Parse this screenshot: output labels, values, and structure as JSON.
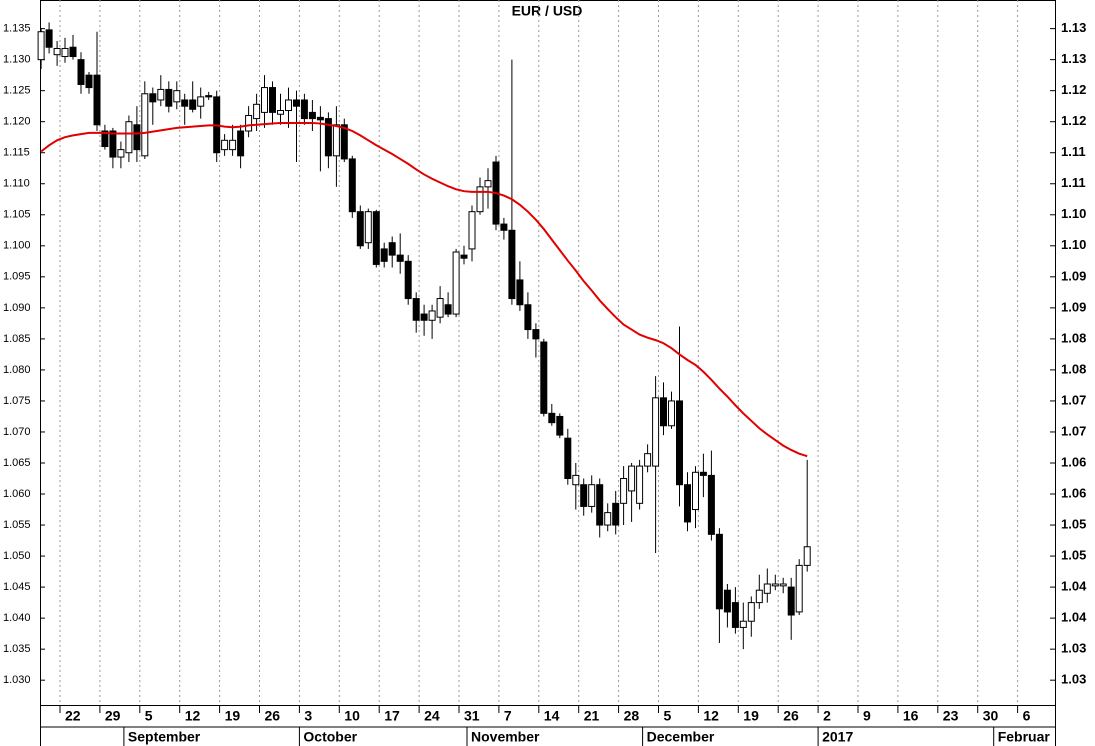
{
  "chart_data": {
    "type": "candlestick",
    "title": "EUR / USD",
    "x": [
      "08-17",
      "08-18",
      "08-19",
      "08-22",
      "08-23",
      "08-24",
      "08-25",
      "08-26",
      "08-29",
      "08-30",
      "08-31",
      "09-01",
      "09-02",
      "09-05",
      "09-06",
      "09-07",
      "09-08",
      "09-09",
      "09-12",
      "09-13",
      "09-14",
      "09-15",
      "09-16",
      "09-19",
      "09-20",
      "09-21",
      "09-22",
      "09-23",
      "09-26",
      "09-27",
      "09-28",
      "09-29",
      "09-30",
      "10-03",
      "10-04",
      "10-05",
      "10-06",
      "10-07",
      "10-10",
      "10-11",
      "10-12",
      "10-13",
      "10-14",
      "10-17",
      "10-18",
      "10-19",
      "10-20",
      "10-21",
      "10-24",
      "10-25",
      "10-26",
      "10-27",
      "10-28",
      "10-31",
      "11-01",
      "11-02",
      "11-03",
      "11-04",
      "11-07",
      "11-08",
      "11-09",
      "11-10",
      "11-11",
      "11-14",
      "11-15",
      "11-16",
      "11-17",
      "11-18",
      "11-21",
      "11-22",
      "11-23",
      "11-24",
      "11-25",
      "11-28",
      "11-29",
      "11-30",
      "12-01",
      "12-02",
      "12-05",
      "12-06",
      "12-07",
      "12-08",
      "12-09",
      "12-12",
      "12-13",
      "12-14",
      "12-15",
      "12-16",
      "12-19",
      "12-20",
      "12-21",
      "12-22",
      "12-23",
      "12-26",
      "12-27",
      "12-28",
      "12-29"
    ],
    "open": [
      1.13,
      1.1348,
      1.1308,
      1.1305,
      1.132,
      1.13,
      1.1275,
      1.1275,
      1.1185,
      1.1185,
      1.1143,
      1.115,
      1.1195,
      1.1145,
      1.1245,
      1.1235,
      1.1252,
      1.1232,
      1.1235,
      1.1235,
      1.1225,
      1.1242,
      1.124,
      1.1155,
      1.1155,
      1.1185,
      1.1185,
      1.1205,
      1.1215,
      1.1255,
      1.1212,
      1.1218,
      1.1235,
      1.1235,
      1.1215,
      1.1207,
      1.1205,
      1.1145,
      1.1195,
      1.114,
      1.1055,
      1.1005,
      1.1055,
      1.0995,
      1.1005,
      1.0985,
      1.0975,
      1.0915,
      1.089,
      1.088,
      1.0885,
      1.0905,
      1.089,
      1.0985,
      1.0995,
      1.1055,
      1.1095,
      1.1135,
      1.1035,
      1.1025,
      1.0945,
      1.0905,
      1.0865,
      1.0845,
      1.073,
      1.0725,
      1.069,
      1.0615,
      1.0615,
      1.058,
      1.0615,
      1.055,
      1.0585,
      1.0585,
      1.0605,
      1.0585,
      1.0645,
      1.0645,
      1.0755,
      1.071,
      1.075,
      1.0615,
      1.0575,
      1.0635,
      1.063,
      1.0535,
      1.0445,
      1.0425,
      1.0385,
      1.0395,
      1.0425,
      1.044,
      1.0452,
      1.0452,
      1.045,
      1.041,
      1.0485
    ],
    "high": [
      1.135,
      1.136,
      1.133,
      1.1335,
      1.134,
      1.1312,
      1.128,
      1.1345,
      1.1195,
      1.119,
      1.1168,
      1.121,
      1.1225,
      1.1265,
      1.1255,
      1.1275,
      1.1265,
      1.1265,
      1.1245,
      1.1265,
      1.1255,
      1.1248,
      1.125,
      1.118,
      1.1195,
      1.1195,
      1.1225,
      1.1245,
      1.1275,
      1.1265,
      1.1245,
      1.1255,
      1.125,
      1.1245,
      1.1235,
      1.1225,
      1.1215,
      1.1225,
      1.1205,
      1.1145,
      1.1065,
      1.106,
      1.1058,
      1.1005,
      1.1015,
      1.102,
      1.0985,
      1.0925,
      1.0905,
      1.0905,
      1.0935,
      1.0925,
      1.0995,
      1.1,
      1.1065,
      1.111,
      1.1125,
      1.1145,
      1.1045,
      1.13,
      1.0975,
      1.0925,
      1.0875,
      1.085,
      1.0745,
      1.073,
      1.0705,
      1.065,
      1.0625,
      1.063,
      1.0625,
      1.0585,
      1.0605,
      1.0645,
      1.065,
      1.0655,
      1.068,
      1.079,
      1.078,
      1.0765,
      1.087,
      1.0635,
      1.0645,
      1.0665,
      1.067,
      1.0545,
      1.0455,
      1.045,
      1.0425,
      1.0435,
      1.047,
      1.048,
      1.047,
      1.0465,
      1.0465,
      1.0495,
      1.0655
    ],
    "low": [
      1.1285,
      1.131,
      1.129,
      1.1295,
      1.13,
      1.1245,
      1.1245,
      1.1185,
      1.1155,
      1.1125,
      1.1125,
      1.1135,
      1.1135,
      1.114,
      1.1195,
      1.1225,
      1.1215,
      1.122,
      1.1195,
      1.1215,
      1.1205,
      1.1235,
      1.1135,
      1.1145,
      1.1145,
      1.1125,
      1.1175,
      1.1185,
      1.119,
      1.1195,
      1.1195,
      1.119,
      1.1135,
      1.1195,
      1.1185,
      1.112,
      1.1125,
      1.1095,
      1.1135,
      1.1045,
      1.0995,
      1.0995,
      1.0965,
      1.0965,
      1.0965,
      1.0955,
      1.0905,
      1.086,
      1.0855,
      1.085,
      1.0875,
      1.0885,
      1.0885,
      1.097,
      1.0975,
      1.105,
      1.106,
      1.1025,
      1.101,
      1.0905,
      1.0895,
      1.085,
      1.082,
      1.0725,
      1.071,
      1.069,
      1.0615,
      1.0575,
      1.0565,
      1.057,
      1.053,
      1.054,
      1.0535,
      1.055,
      1.0555,
      1.0575,
      1.0635,
      1.0505,
      1.0695,
      1.0705,
      1.058,
      1.054,
      1.0545,
      1.0595,
      1.0525,
      1.036,
      1.0385,
      1.0375,
      1.035,
      1.037,
      1.0415,
      1.0425,
      1.0445,
      1.044,
      1.0365,
      1.0405,
      1.0475
    ],
    "close": [
      1.1345,
      1.132,
      1.1318,
      1.1318,
      1.1305,
      1.126,
      1.1255,
      1.1195,
      1.116,
      1.1143,
      1.1155,
      1.12,
      1.1155,
      1.1245,
      1.1232,
      1.1252,
      1.1225,
      1.125,
      1.1225,
      1.122,
      1.124,
      1.124,
      1.115,
      1.117,
      1.117,
      1.1145,
      1.121,
      1.1228,
      1.1255,
      1.1215,
      1.1218,
      1.1235,
      1.1225,
      1.1205,
      1.1205,
      1.1203,
      1.1145,
      1.1195,
      1.114,
      1.1055,
      1.1,
      1.1055,
      1.097,
      1.0975,
      1.0985,
      1.0975,
      1.0915,
      1.088,
      1.088,
      1.0895,
      1.0915,
      1.089,
      1.099,
      1.098,
      1.1055,
      1.1095,
      1.1105,
      1.1035,
      1.1025,
      1.0915,
      1.0905,
      1.0865,
      1.085,
      1.073,
      1.0715,
      1.0695,
      1.0625,
      1.063,
      1.058,
      1.0615,
      1.055,
      1.057,
      1.055,
      1.0625,
      1.0645,
      1.0645,
      1.0665,
      1.0755,
      1.071,
      1.075,
      1.0615,
      1.0555,
      1.0635,
      1.063,
      1.0535,
      1.0415,
      1.041,
      1.0385,
      1.0395,
      1.0425,
      1.0445,
      1.0455,
      1.0455,
      1.0455,
      1.0405,
      1.0485,
      1.0515
    ],
    "up_color": "#ffffff",
    "down_color": "#000000",
    "ma": {
      "color": "#e00000",
      "values": [
        1.1152,
        1.1162,
        1.117,
        1.1175,
        1.1178,
        1.118,
        1.1182,
        1.1182,
        1.1182,
        1.1181,
        1.1181,
        1.1181,
        1.1181,
        1.1182,
        1.1184,
        1.1186,
        1.1188,
        1.119,
        1.1191,
        1.1192,
        1.1193,
        1.1194,
        1.1194,
        1.1192,
        1.1191,
        1.1192,
        1.1194,
        1.1195,
        1.1196,
        1.1197,
        1.1198,
        1.1198,
        1.1198,
        1.1198,
        1.1198,
        1.1197,
        1.1195,
        1.1193,
        1.119,
        1.1185,
        1.1178,
        1.117,
        1.1162,
        1.1155,
        1.1148,
        1.114,
        1.1132,
        1.1123,
        1.1115,
        1.1108,
        1.1102,
        1.1096,
        1.1091,
        1.1088,
        1.1087,
        1.1087,
        1.1087,
        1.1085,
        1.1081,
        1.1075,
        1.1066,
        1.1055,
        1.1042,
        1.1027,
        1.101,
        1.0993,
        1.0976,
        1.096,
        1.0943,
        1.0928,
        1.0912,
        1.0898,
        1.0885,
        1.0873,
        1.0865,
        1.0857,
        1.0852,
        1.0848,
        1.0843,
        1.0835,
        1.0825,
        1.0816,
        1.0808,
        1.0797,
        1.0784,
        1.077,
        1.0757,
        1.0743,
        1.073,
        1.0718,
        1.0706,
        1.0696,
        1.0687,
        1.0678,
        1.0671,
        1.0665,
        1.0661
      ]
    },
    "ylim": [
      1.026,
      1.138
    ],
    "yticks": [
      1.135,
      {
        "value": 1.13,
        "label": "1.130"
      },
      1.125,
      {
        "value": 1.12,
        "label": "1.120"
      },
      1.115,
      {
        "value": 1.11,
        "label": "1.110"
      },
      1.105,
      {
        "value": 1.1,
        "label": "1.100"
      },
      1.095,
      {
        "value": 1.09,
        "label": "1.090"
      },
      1.085,
      {
        "value": 1.08,
        "label": "1.080"
      },
      1.075,
      {
        "value": 1.07,
        "label": "1.070"
      },
      1.065,
      {
        "value": 1.06,
        "label": "1.060"
      },
      1.055,
      {
        "value": 1.05,
        "label": "1.050"
      },
      1.045,
      {
        "value": 1.04,
        "label": "1.040"
      },
      1.035,
      {
        "value": 1.03,
        "label": "1.030"
      }
    ],
    "y2lim": [
      1.026,
      1.138
    ],
    "y2ticks": [
      {
        "value": 1.135,
        "label": "1.13"
      },
      {
        "value": 1.13,
        "label": "1.13"
      },
      {
        "value": 1.125,
        "label": "1.12"
      },
      {
        "value": 1.12,
        "label": "1.12"
      },
      {
        "value": 1.115,
        "label": "1.11"
      },
      {
        "value": 1.11,
        "label": "1.11"
      },
      {
        "value": 1.105,
        "label": "1.10"
      },
      {
        "value": 1.1,
        "label": "1.10"
      },
      {
        "value": 1.095,
        "label": "1.09"
      },
      {
        "value": 1.09,
        "label": "1.09"
      },
      {
        "value": 1.085,
        "label": "1.08"
      },
      {
        "value": 1.08,
        "label": "1.08"
      },
      {
        "value": 1.075,
        "label": "1.07"
      },
      {
        "value": 1.07,
        "label": "1.07"
      },
      {
        "value": 1.065,
        "label": "1.06"
      },
      {
        "value": 1.06,
        "label": "1.06"
      },
      {
        "value": 1.055,
        "label": "1.05"
      },
      {
        "value": 1.05,
        "label": "1.05"
      },
      {
        "value": 1.045,
        "label": "1.04"
      },
      {
        "value": 1.04,
        "label": "1.04"
      },
      {
        "value": 1.035,
        "label": "1.03"
      },
      {
        "value": 1.03,
        "label": "1.03"
      }
    ],
    "xticks": [
      {
        "value": "08-22",
        "label": "22"
      },
      {
        "value": "08-29",
        "label": "29"
      },
      {
        "value": "09-05",
        "label": "5"
      },
      {
        "value": "09-12",
        "label": "12"
      },
      {
        "value": "09-19",
        "label": "19"
      },
      {
        "value": "09-26",
        "label": "26"
      },
      {
        "value": "10-03",
        "label": "3"
      },
      {
        "value": "10-10",
        "label": "10"
      },
      {
        "value": "10-17",
        "label": "17"
      },
      {
        "value": "10-24",
        "label": "24"
      },
      {
        "value": "10-31",
        "label": "31"
      },
      {
        "value": "11-07",
        "label": "7"
      },
      {
        "value": "11-14",
        "label": "14"
      },
      {
        "value": "11-21",
        "label": "21"
      },
      {
        "value": "11-28",
        "label": "28"
      },
      {
        "value": "12-05",
        "label": "5"
      },
      {
        "value": "12-12",
        "label": "12"
      },
      {
        "value": "12-19",
        "label": "19"
      },
      {
        "value": "12-26",
        "label": "26"
      },
      {
        "value": "01-02",
        "label": "2"
      },
      {
        "value": "01-09",
        "label": "9"
      },
      {
        "value": "01-16",
        "label": "16"
      },
      {
        "value": "01-23",
        "label": "23"
      },
      {
        "value": "01-30",
        "label": "30"
      },
      {
        "value": "02-06",
        "label": "6"
      }
    ],
    "months": [
      {
        "value": "09-01",
        "label": "September"
      },
      {
        "value": "10-03",
        "label": "October"
      },
      {
        "value": "11-01",
        "label": "November"
      },
      {
        "value": "12-01",
        "label": "December"
      },
      {
        "value": "01-02",
        "label": "2017"
      },
      {
        "value": "02-01",
        "label": "Februar"
      }
    ],
    "grid": true
  }
}
